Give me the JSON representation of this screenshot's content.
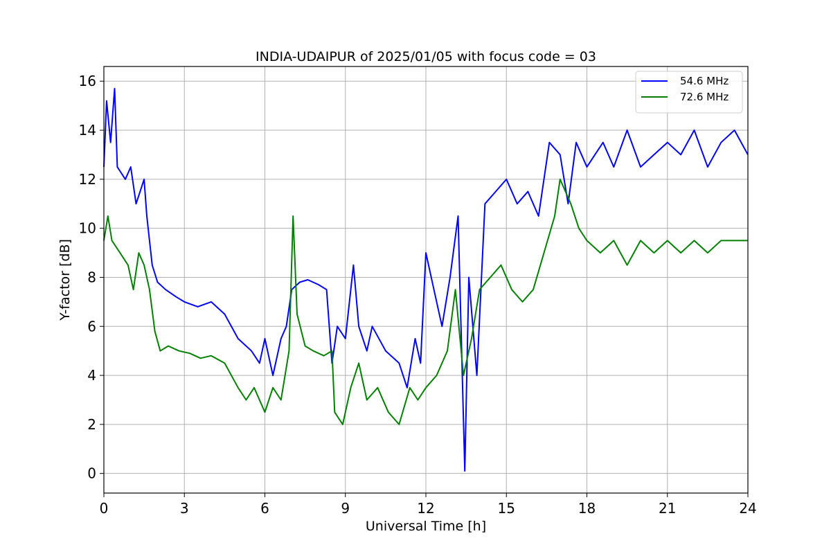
{
  "chart_data": {
    "type": "line",
    "title": "INDIA-UDAIPUR of 2025/01/05 with focus code = 03",
    "xlabel": "Universal Time [h]",
    "ylabel": "Y-factor [dB]",
    "xlim": [
      0,
      24
    ],
    "ylim": [
      -0.8,
      16.6
    ],
    "xticks": [
      0,
      3,
      6,
      9,
      12,
      15,
      18,
      21,
      24
    ],
    "yticks": [
      0,
      2,
      4,
      6,
      8,
      10,
      12,
      14,
      16
    ],
    "grid": true,
    "legend_position": "top-right",
    "series": [
      {
        "name": "54.6 MHz",
        "color": "#0000ff",
        "points": [
          [
            0.0,
            12.5
          ],
          [
            0.1,
            15.2
          ],
          [
            0.25,
            13.5
          ],
          [
            0.4,
            15.7
          ],
          [
            0.5,
            12.5
          ],
          [
            0.8,
            12.0
          ],
          [
            1.0,
            12.5
          ],
          [
            1.2,
            11.0
          ],
          [
            1.5,
            12.0
          ],
          [
            1.6,
            10.5
          ],
          [
            1.8,
            8.5
          ],
          [
            2.0,
            7.8
          ],
          [
            2.3,
            7.5
          ],
          [
            2.7,
            7.2
          ],
          [
            3.0,
            7.0
          ],
          [
            3.5,
            6.8
          ],
          [
            4.0,
            7.0
          ],
          [
            4.5,
            6.5
          ],
          [
            5.0,
            5.5
          ],
          [
            5.5,
            5.0
          ],
          [
            5.8,
            4.5
          ],
          [
            6.0,
            5.5
          ],
          [
            6.3,
            4.0
          ],
          [
            6.6,
            5.5
          ],
          [
            6.8,
            6.0
          ],
          [
            7.0,
            7.5
          ],
          [
            7.3,
            7.8
          ],
          [
            7.6,
            7.9
          ],
          [
            8.0,
            7.7
          ],
          [
            8.3,
            7.5
          ],
          [
            8.5,
            4.5
          ],
          [
            8.7,
            6.0
          ],
          [
            9.0,
            5.5
          ],
          [
            9.3,
            8.5
          ],
          [
            9.5,
            6.0
          ],
          [
            9.8,
            5.0
          ],
          [
            10.0,
            6.0
          ],
          [
            10.5,
            5.0
          ],
          [
            11.0,
            4.5
          ],
          [
            11.3,
            3.5
          ],
          [
            11.6,
            5.5
          ],
          [
            11.8,
            4.5
          ],
          [
            12.0,
            9.0
          ],
          [
            12.3,
            7.5
          ],
          [
            12.6,
            6.0
          ],
          [
            12.9,
            8.0
          ],
          [
            13.2,
            10.5
          ],
          [
            13.45,
            0.1
          ],
          [
            13.6,
            8.0
          ],
          [
            13.9,
            4.0
          ],
          [
            14.2,
            11.0
          ],
          [
            14.6,
            11.5
          ],
          [
            15.0,
            12.0
          ],
          [
            15.4,
            11.0
          ],
          [
            15.8,
            11.5
          ],
          [
            16.2,
            10.5
          ],
          [
            16.6,
            13.5
          ],
          [
            17.0,
            13.0
          ],
          [
            17.3,
            11.0
          ],
          [
            17.6,
            13.5
          ],
          [
            18.0,
            12.5
          ],
          [
            18.3,
            13.0
          ],
          [
            18.6,
            13.5
          ],
          [
            19.0,
            12.5
          ],
          [
            19.5,
            14.0
          ],
          [
            20.0,
            12.5
          ],
          [
            20.5,
            13.0
          ],
          [
            21.0,
            13.5
          ],
          [
            21.5,
            13.0
          ],
          [
            22.0,
            14.0
          ],
          [
            22.5,
            12.5
          ],
          [
            23.0,
            13.5
          ],
          [
            23.5,
            14.0
          ],
          [
            24.0,
            13.0
          ]
        ]
      },
      {
        "name": "72.6 MHz",
        "color": "#008000",
        "points": [
          [
            0.0,
            9.5
          ],
          [
            0.15,
            10.5
          ],
          [
            0.3,
            9.5
          ],
          [
            0.6,
            9.0
          ],
          [
            0.9,
            8.5
          ],
          [
            1.1,
            7.5
          ],
          [
            1.3,
            9.0
          ],
          [
            1.5,
            8.5
          ],
          [
            1.7,
            7.5
          ],
          [
            1.9,
            5.8
          ],
          [
            2.1,
            5.0
          ],
          [
            2.4,
            5.2
          ],
          [
            2.8,
            5.0
          ],
          [
            3.2,
            4.9
          ],
          [
            3.6,
            4.7
          ],
          [
            4.0,
            4.8
          ],
          [
            4.5,
            4.5
          ],
          [
            5.0,
            3.5
          ],
          [
            5.3,
            3.0
          ],
          [
            5.6,
            3.5
          ],
          [
            6.0,
            2.5
          ],
          [
            6.3,
            3.5
          ],
          [
            6.6,
            3.0
          ],
          [
            6.9,
            5.0
          ],
          [
            7.05,
            10.5
          ],
          [
            7.2,
            6.5
          ],
          [
            7.5,
            5.2
          ],
          [
            7.8,
            5.0
          ],
          [
            8.2,
            4.8
          ],
          [
            8.5,
            5.0
          ],
          [
            8.6,
            2.5
          ],
          [
            8.9,
            2.0
          ],
          [
            9.2,
            3.5
          ],
          [
            9.5,
            4.5
          ],
          [
            9.8,
            3.0
          ],
          [
            10.2,
            3.5
          ],
          [
            10.6,
            2.5
          ],
          [
            11.0,
            2.0
          ],
          [
            11.4,
            3.5
          ],
          [
            11.7,
            3.0
          ],
          [
            12.0,
            3.5
          ],
          [
            12.4,
            4.0
          ],
          [
            12.8,
            5.0
          ],
          [
            13.1,
            7.5
          ],
          [
            13.4,
            4.0
          ],
          [
            13.7,
            5.5
          ],
          [
            14.0,
            7.5
          ],
          [
            14.4,
            8.0
          ],
          [
            14.8,
            8.5
          ],
          [
            15.2,
            7.5
          ],
          [
            15.6,
            7.0
          ],
          [
            16.0,
            7.5
          ],
          [
            16.4,
            9.0
          ],
          [
            16.8,
            10.5
          ],
          [
            17.0,
            12.0
          ],
          [
            17.4,
            11.0
          ],
          [
            17.7,
            10.0
          ],
          [
            18.0,
            9.5
          ],
          [
            18.5,
            9.0
          ],
          [
            19.0,
            9.5
          ],
          [
            19.5,
            8.5
          ],
          [
            20.0,
            9.5
          ],
          [
            20.5,
            9.0
          ],
          [
            21.0,
            9.5
          ],
          [
            21.5,
            9.0
          ],
          [
            22.0,
            9.5
          ],
          [
            22.5,
            9.0
          ],
          [
            23.0,
            9.5
          ],
          [
            23.5,
            9.5
          ],
          [
            24.0,
            9.5
          ]
        ]
      }
    ]
  }
}
